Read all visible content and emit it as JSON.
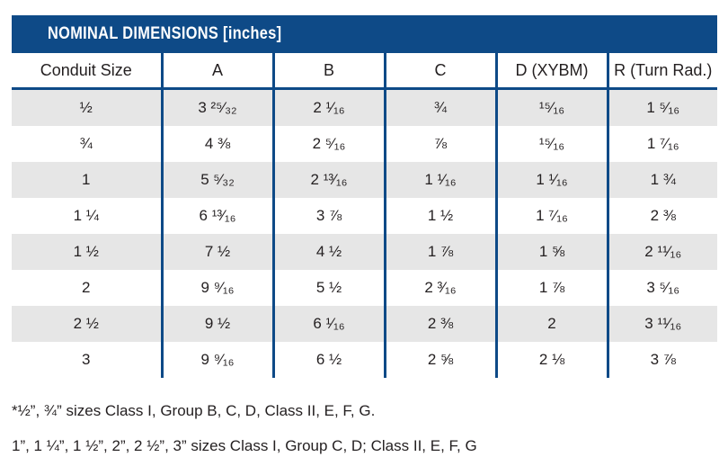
{
  "title": "NOMINAL DIMENSIONS [inches]",
  "headers": [
    "Conduit Size",
    "A",
    "B",
    "C",
    "D (XYBM)",
    "R (Turn Rad.)"
  ],
  "rows": [
    [
      "½",
      "3 ²⁵⁄₃₂",
      "2 ¹⁄₁₆",
      "¾",
      "¹⁵⁄₁₆",
      "1 ⁵⁄₁₆"
    ],
    [
      "¾",
      "4 ⅜",
      "2 ⁵⁄₁₆",
      "⅞",
      "¹⁵⁄₁₆",
      "1 ⁷⁄₁₆"
    ],
    [
      "1",
      "5 ⁵⁄₃₂",
      "2 ¹³⁄₁₆",
      "1 ¹⁄₁₆",
      "1 ¹⁄₁₆",
      "1 ¾"
    ],
    [
      "1 ¼",
      "6 ¹³⁄₁₆",
      "3 ⅞",
      "1 ½",
      "1 ⁷⁄₁₆",
      "2 ⅜"
    ],
    [
      "1 ½",
      "7 ½",
      "4 ½",
      "1 ⅞",
      "1 ⅝",
      "2 ¹¹⁄₁₆"
    ],
    [
      "2",
      "9 ⁹⁄₁₆",
      "5 ½",
      "2 ³⁄₁₆",
      "1 ⅞",
      "3 ⁵⁄₁₆"
    ],
    [
      "2 ½",
      "9 ½",
      "6 ¹⁄₁₆",
      "2 ⅜",
      "2",
      "3 ¹¹⁄₁₆"
    ],
    [
      "3",
      "9 ⁹⁄₁₆",
      "6 ½",
      "2 ⅝",
      "2 ⅛",
      "3 ⅞"
    ]
  ],
  "notes": [
    "*½”, ¾” sizes Class I, Group B, C, D, Class II, E, F, G.",
    "1”, 1 ¼”, 1 ½”, 2”,  2 ½”, 3” sizes Class I, Group C, D; Class II, E, F, G"
  ],
  "colors": {
    "header_bar": "#0e4a87",
    "divider": "#0e4a87",
    "shaded_row": "#e6e6e6",
    "text": "#231f20"
  }
}
